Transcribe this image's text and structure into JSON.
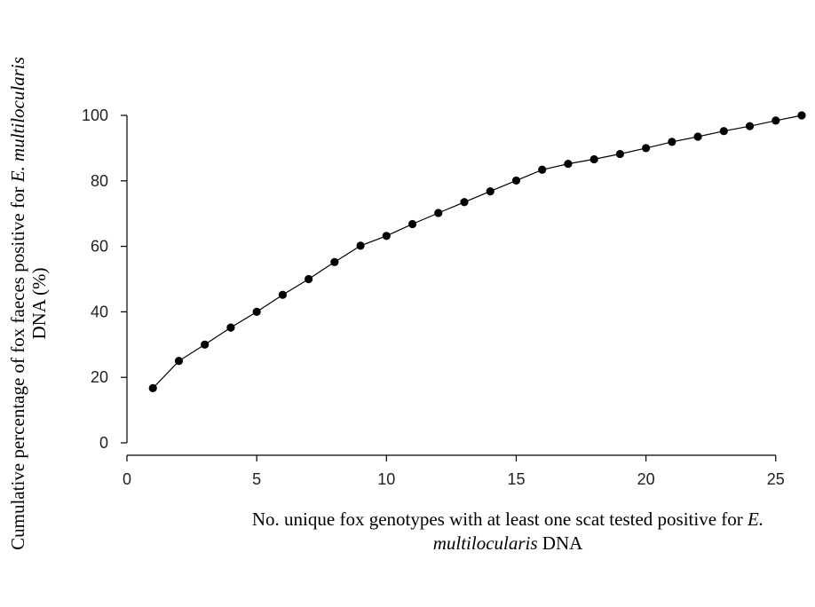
{
  "chart_data": {
    "type": "line",
    "xlabel": {
      "line1_prefix": "No. unique fox genotypes with at least one scat tested positive for ",
      "line1_italic": "E.",
      "line2_italic": "multilocularis",
      "line2_suffix": " DNA"
    },
    "ylabel": {
      "line1_prefix": "Cumulative percentage of fox faeces positive for ",
      "line1_italic": "E. multilocularis",
      "line2": "DNA (%)"
    },
    "xlim": [
      0,
      26
    ],
    "ylim": [
      0,
      100
    ],
    "xticks": [
      0,
      5,
      10,
      15,
      20,
      25
    ],
    "yticks": [
      0,
      20,
      40,
      60,
      80,
      100
    ],
    "grid": false,
    "legend": "none",
    "color": "#000000",
    "series": [
      {
        "x": [
          1,
          2,
          3,
          4,
          5,
          6,
          7,
          8,
          9,
          10,
          11,
          12,
          13,
          14,
          15,
          16,
          17,
          18,
          19,
          20,
          21,
          22,
          23,
          24,
          25,
          26
        ],
        "y": [
          16.7,
          25,
          30,
          35.2,
          40,
          45.2,
          50,
          55.2,
          60.2,
          63.2,
          66.8,
          70.2,
          73.5,
          76.8,
          80.1,
          83.4,
          85.2,
          86.6,
          88.2,
          90,
          91.9,
          93.5,
          95.2,
          96.7,
          98.4,
          100
        ]
      }
    ]
  }
}
